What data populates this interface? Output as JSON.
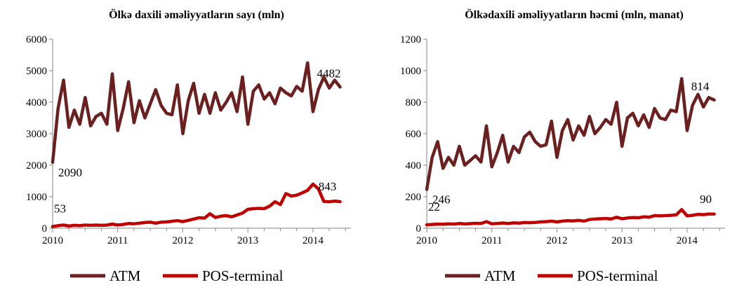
{
  "colors": {
    "atm": "#6b1f1f",
    "pos": "#c00000",
    "axis": "#868686"
  },
  "legend": {
    "atm": "ATM",
    "pos": "POS-terminal"
  },
  "chart_data": [
    {
      "type": "line",
      "title": "Ölkə daxili əməliyyatların sayı (mln)",
      "ylim": [
        0,
        6000
      ],
      "yticks": [
        0,
        1000,
        2000,
        3000,
        4000,
        5000,
        6000
      ],
      "xlim": [
        0,
        55
      ],
      "xticks": [
        {
          "x": 0,
          "label": "2010"
        },
        {
          "x": 12,
          "label": "2011"
        },
        {
          "x": 24,
          "label": "2012"
        },
        {
          "x": 36,
          "label": "2013"
        },
        {
          "x": 48,
          "label": "2014"
        }
      ],
      "series": [
        {
          "name": "ATM",
          "key": "atm",
          "values": [
            2090,
            3800,
            4700,
            3200,
            3750,
            3300,
            4150,
            3250,
            3550,
            3650,
            3300,
            4900,
            3100,
            3800,
            4650,
            3350,
            4050,
            3500,
            3950,
            4400,
            3900,
            3650,
            3600,
            4550,
            3000,
            4050,
            4600,
            3650,
            4250,
            3650,
            4300,
            3750,
            4000,
            4300,
            3700,
            4800,
            3300,
            4350,
            4550,
            4100,
            4300,
            3950,
            4450,
            4300,
            4200,
            4500,
            4350,
            5250,
            3700,
            4400,
            4800,
            4450,
            4700,
            4482
          ],
          "labels": [
            {
              "i": 0,
              "text": "2090"
            },
            {
              "i": 53,
              "text": "4482"
            }
          ]
        },
        {
          "name": "POS-terminal",
          "key": "pos",
          "values": [
            53,
            80,
            100,
            70,
            90,
            80,
            100,
            90,
            100,
            90,
            100,
            130,
            100,
            120,
            150,
            140,
            160,
            180,
            190,
            160,
            190,
            200,
            220,
            240,
            210,
            250,
            290,
            330,
            320,
            460,
            340,
            380,
            400,
            360,
            420,
            480,
            600,
            620,
            630,
            620,
            700,
            840,
            750,
            1100,
            1020,
            1050,
            1120,
            1200,
            1400,
            1250,
            850,
            840,
            860,
            843
          ],
          "labels": [
            {
              "i": 0,
              "text": "53"
            },
            {
              "i": 53,
              "text": "843"
            }
          ]
        }
      ]
    },
    {
      "type": "line",
      "title": "Ölkədaxili əməliyyatların həcmi (mln, manat)",
      "ylim": [
        0,
        1200
      ],
      "yticks": [
        0,
        200,
        400,
        600,
        800,
        1000,
        1200
      ],
      "xlim": [
        0,
        55
      ],
      "xticks": [
        {
          "x": 0,
          "label": "2010"
        },
        {
          "x": 12,
          "label": "2011"
        },
        {
          "x": 24,
          "label": "2012"
        },
        {
          "x": 36,
          "label": "2013"
        },
        {
          "x": 48,
          "label": "2014"
        }
      ],
      "series": [
        {
          "name": "ATM",
          "key": "atm",
          "values": [
            246,
            450,
            550,
            380,
            450,
            400,
            520,
            400,
            430,
            460,
            420,
            650,
            390,
            480,
            590,
            420,
            520,
            480,
            580,
            610,
            550,
            520,
            530,
            680,
            450,
            620,
            690,
            560,
            650,
            590,
            710,
            600,
            640,
            690,
            660,
            800,
            520,
            700,
            730,
            650,
            720,
            640,
            760,
            700,
            690,
            750,
            740,
            950,
            620,
            780,
            850,
            770,
            830,
            814
          ],
          "labels": [
            {
              "i": 0,
              "text": "246"
            },
            {
              "i": 53,
              "text": "814"
            }
          ]
        },
        {
          "name": "POS-terminal",
          "key": "pos",
          "values": [
            22,
            24,
            26,
            25,
            28,
            26,
            30,
            27,
            29,
            31,
            30,
            42,
            28,
            30,
            33,
            30,
            34,
            32,
            36,
            35,
            37,
            40,
            42,
            45,
            40,
            45,
            48,
            46,
            50,
            45,
            55,
            58,
            60,
            62,
            58,
            70,
            60,
            65,
            68,
            66,
            72,
            70,
            80,
            78,
            80,
            82,
            85,
            118,
            78,
            82,
            88,
            86,
            90,
            90
          ],
          "labels": [
            {
              "i": 0,
              "text": "22"
            },
            {
              "i": 53,
              "text": "90"
            }
          ]
        }
      ]
    }
  ]
}
